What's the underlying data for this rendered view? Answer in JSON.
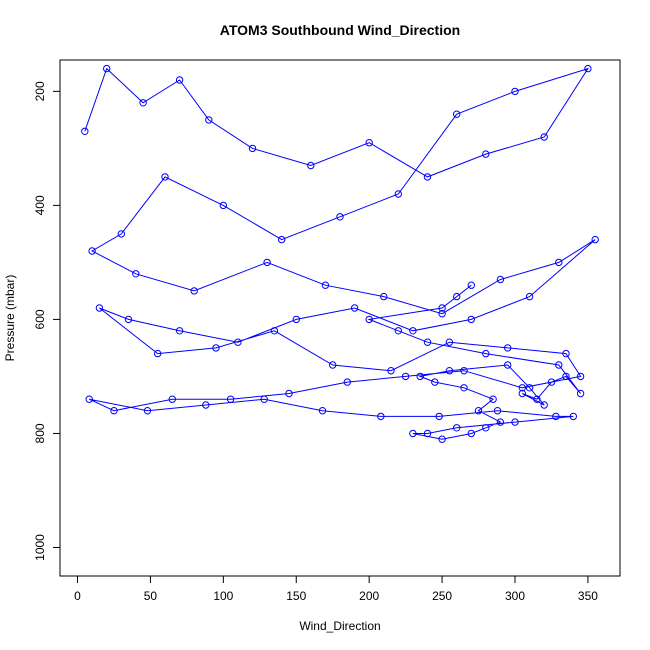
{
  "chart_data": {
    "type": "scatter",
    "title": "ATOM3 Southbound Wind_Direction",
    "xlabel": "Wind_Direction",
    "ylabel": "Pressure (mbar)",
    "xlim": [
      -12,
      372
    ],
    "ylim": [
      1050,
      145
    ],
    "y_reversed": true,
    "x_ticks": [
      0,
      50,
      100,
      150,
      200,
      250,
      300,
      350
    ],
    "y_ticks": [
      200,
      400,
      600,
      800,
      1000
    ],
    "grid": false,
    "legend": "none",
    "series_color": "#0000ff",
    "marker": "open-circle",
    "connect_points": true,
    "series": [
      {
        "x": [
          5,
          20,
          45,
          70,
          90,
          120,
          160,
          200,
          240,
          280,
          320,
          350,
          300,
          260,
          220,
          180,
          140,
          100,
          60,
          30,
          10,
          40,
          80,
          130,
          170,
          210,
          250,
          290,
          330,
          355,
          310,
          270,
          230,
          190,
          150,
          110,
          70,
          35,
          15,
          55,
          95,
          135,
          175,
          215,
          255,
          295,
          335,
          345,
          305,
          265,
          225,
          185,
          145,
          105,
          65,
          25,
          8,
          48,
          88,
          128,
          168,
          208,
          248,
          288,
          328,
          340,
          300,
          260,
          240,
          230,
          250,
          270,
          280,
          290,
          275,
          285,
          265,
          245,
          235,
          255,
          295,
          310,
          320,
          305,
          315,
          325,
          335,
          345,
          330,
          280,
          240,
          220,
          200,
          250,
          260,
          270
        ],
        "y": [
          270,
          160,
          220,
          180,
          250,
          300,
          330,
          290,
          350,
          310,
          280,
          160,
          200,
          240,
          380,
          420,
          460,
          400,
          350,
          450,
          480,
          520,
          550,
          500,
          540,
          560,
          590,
          530,
          500,
          460,
          560,
          600,
          620,
          580,
          600,
          640,
          620,
          600,
          580,
          660,
          650,
          620,
          680,
          690,
          640,
          650,
          660,
          700,
          720,
          690,
          700,
          710,
          730,
          740,
          740,
          760,
          740,
          760,
          750,
          740,
          760,
          770,
          770,
          760,
          770,
          770,
          780,
          790,
          800,
          800,
          810,
          800,
          790,
          780,
          760,
          740,
          720,
          710,
          700,
          690,
          680,
          720,
          750,
          730,
          740,
          710,
          700,
          730,
          680,
          660,
          640,
          620,
          600,
          580,
          560,
          540
        ]
      }
    ]
  }
}
